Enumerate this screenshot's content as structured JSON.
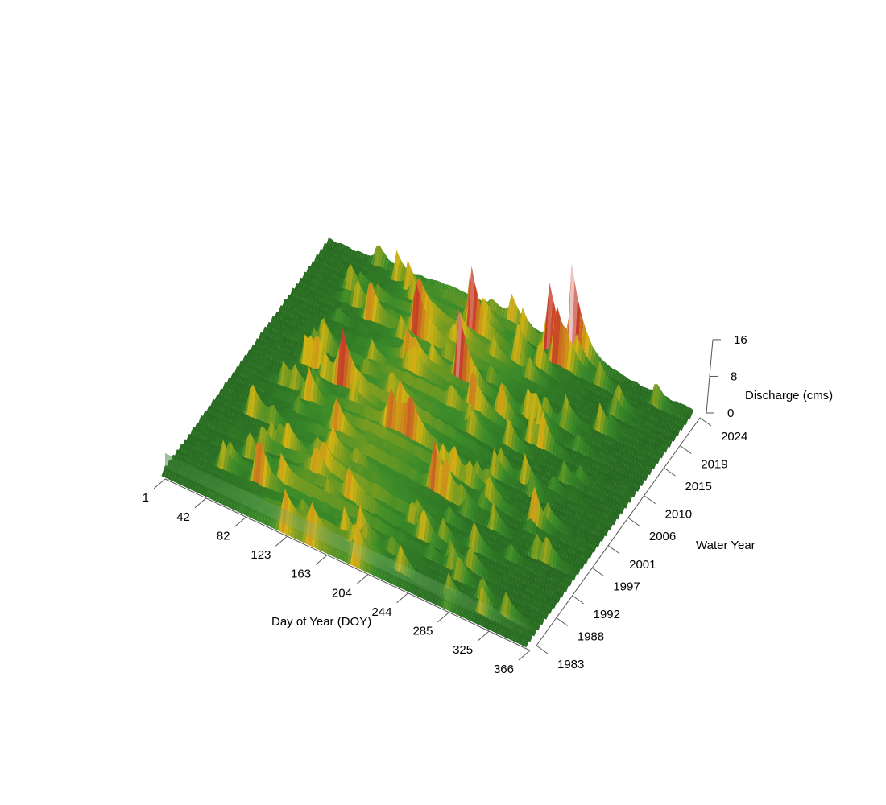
{
  "chart_data": {
    "type": "surface3d",
    "title": "",
    "xlabel": "Day of Year (DOY)",
    "ylabel": "Water Year",
    "zlabel": "Discharge (cms)",
    "x_ticks": [
      1,
      42,
      82,
      123,
      163,
      204,
      244,
      285,
      325,
      366
    ],
    "y_ticks": [
      1983,
      1988,
      1992,
      1997,
      2001,
      2006,
      2010,
      2015,
      2019,
      2024
    ],
    "z_ticks": [
      0,
      8,
      16
    ],
    "xlim": [
      1,
      366
    ],
    "ylim": [
      1983,
      2024
    ],
    "zlim": [
      0,
      16
    ],
    "colormap": [
      "#1e5a1e",
      "#3c8c2a",
      "#d2b414",
      "#c83c28",
      "#f5e6e6"
    ],
    "peaks": [
      {
        "year": 2024,
        "doy": 244,
        "discharge": 15.5
      },
      {
        "year": 2023,
        "doy": 225,
        "discharge": 11.5
      },
      {
        "year": 2022,
        "doy": 236,
        "discharge": 10.5
      },
      {
        "year": 2013,
        "doy": 175,
        "discharge": 11.0
      },
      {
        "year": 2005,
        "doy": 90,
        "discharge": 7.5
      },
      {
        "year": 1996,
        "doy": 35,
        "discharge": 5.0
      },
      {
        "year": 2016,
        "doy": 120,
        "discharge": 7.0
      },
      {
        "year": 2019,
        "doy": 110,
        "discharge": 6.0
      },
      {
        "year": 2010,
        "doy": 200,
        "discharge": 6.5
      },
      {
        "year": 2002,
        "doy": 150,
        "discharge": 5.5
      },
      {
        "year": 2020,
        "doy": 160,
        "discharge": 6.0
      },
      {
        "year": 1999,
        "doy": 260,
        "discharge": 4.5
      }
    ]
  }
}
